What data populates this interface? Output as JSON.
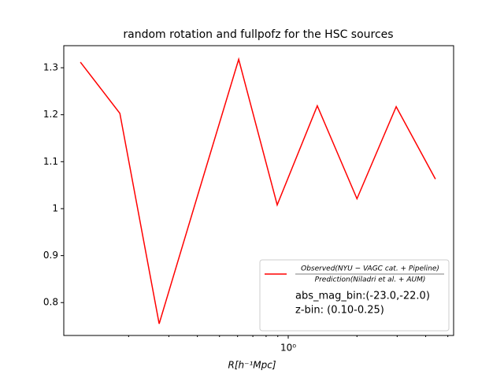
{
  "chart_data": {
    "type": "line",
    "title": "random rotation and fullpofz for the HSC sources",
    "x_label": "R[h⁻¹Mpc]",
    "x": [
      0.123,
      0.183,
      0.272,
      0.408,
      0.607,
      0.895,
      1.34,
      2.0,
      2.97,
      4.41
    ],
    "series": [
      {
        "name": {
          "numerator": "Observed(NYU − VAGC cat. + Pipeline)",
          "denominator": "Prediction(Niladri et al. + AUM)"
        },
        "color": "#ff0000",
        "values": [
          1.312,
          1.203,
          0.755,
          1.04,
          1.318,
          1.008,
          1.219,
          1.021,
          1.217,
          1.063
        ]
      }
    ],
    "annotations": [
      "abs_mag_bin:(-23.0,-22.0)",
      "z-bin: (0.10-0.25)"
    ],
    "xscale": "log",
    "xlim": [
      0.104,
      5.3
    ],
    "xticks": [
      {
        "value": 1,
        "label": "10⁰"
      }
    ],
    "xminorticks": [
      0.2,
      0.3,
      0.4,
      0.5,
      0.6,
      0.7,
      0.8,
      0.9,
      2,
      3,
      4,
      5
    ],
    "ylim": [
      0.73,
      1.347
    ],
    "yticks": [
      0.8,
      0.9,
      1.0,
      1.1,
      1.2,
      1.3
    ],
    "legend": "lower right"
  }
}
